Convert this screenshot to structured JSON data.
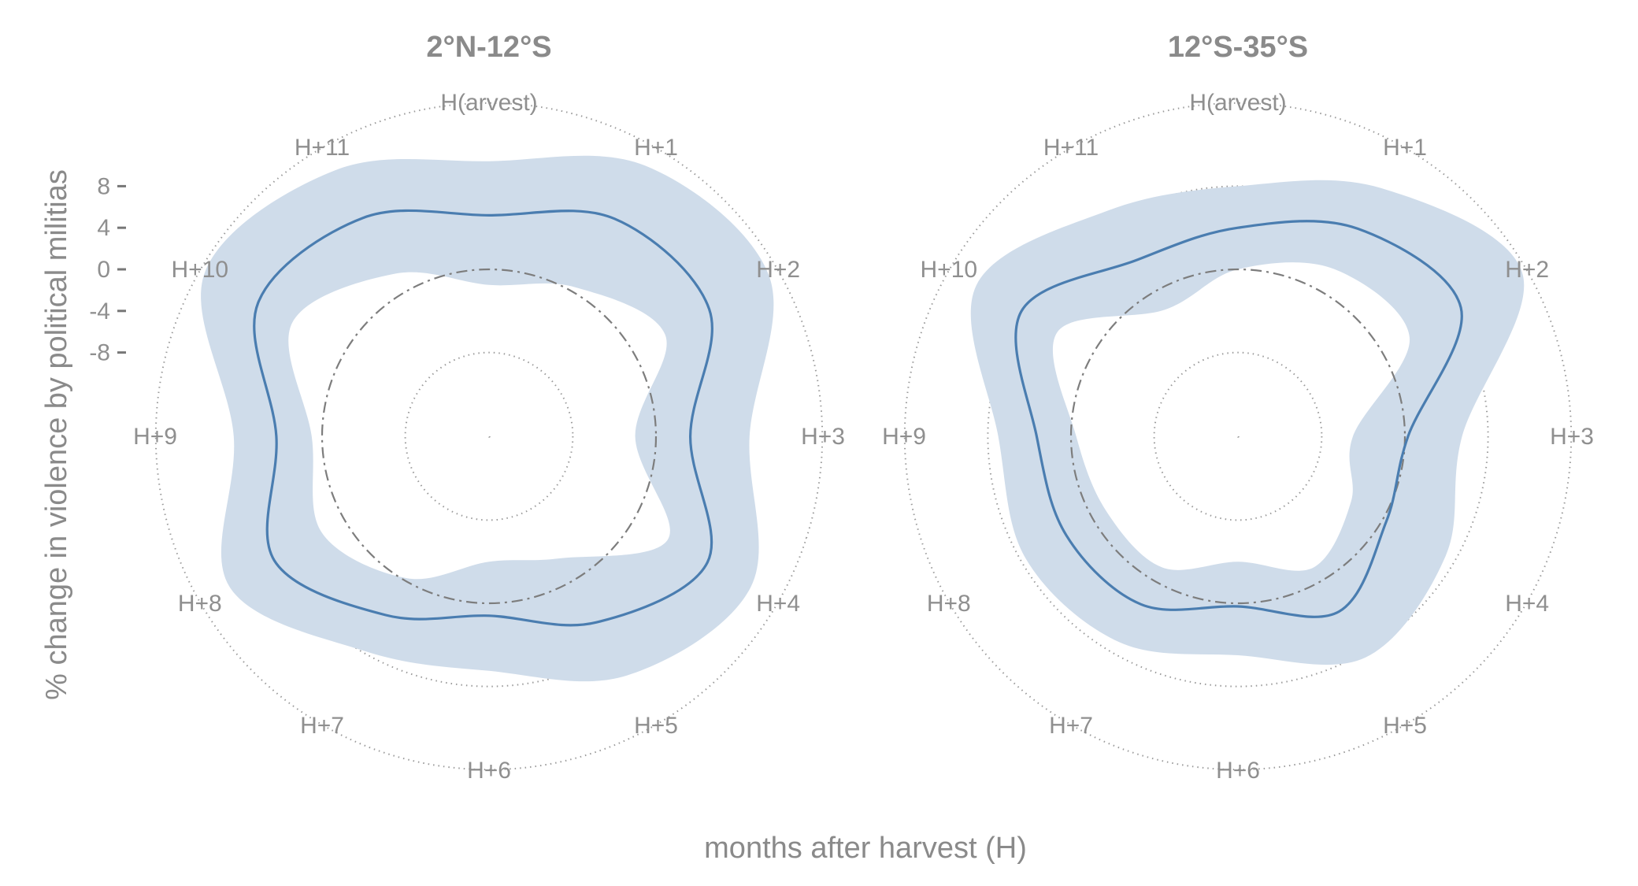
{
  "figure": {
    "xlabel": "months after harvest (H)",
    "ylabel": "% change in violence by political militias",
    "y_ticks": [
      "8",
      "4",
      "0",
      "-4",
      "-8"
    ],
    "month_labels": [
      "H(arvest)",
      "H+1",
      "H+2",
      "H+3",
      "H+4",
      "H+5",
      "H+6",
      "H+7",
      "H+8",
      "H+9",
      "H+10",
      "H+11"
    ]
  },
  "colors": {
    "mean_line": "#4a7db0",
    "ci_band": "#cfdcea",
    "text": "#8f8f8f"
  },
  "chart_data": [
    {
      "type": "line",
      "coordinate_system": "polar",
      "title": "2°N-12°S",
      "radial_axis": {
        "ticks": [
          8,
          4,
          0,
          -4,
          -8
        ],
        "grid_rings": [
          -32,
          -24,
          -16,
          -8,
          0,
          8,
          16
        ],
        "reference_ring": 0
      },
      "categories": [
        "H(arvest)",
        "H+1",
        "H+2",
        "H+3",
        "H+4",
        "H+5",
        "H+6",
        "H+7",
        "H+8",
        "H+9",
        "H+10",
        "H+11"
      ],
      "series": [
        {
          "values": [
            5.2,
            8.1,
            8.4,
            3.3,
            8.2,
            4.6,
            1.2,
            3.8,
            7.8,
            4.4,
            9.6,
            8.2
          ],
          "lower": [
            -1.5,
            0.5,
            3.5,
            -2.0,
            3.8,
            -2.5,
            -4.0,
            -0.3,
            2.5,
            1.0,
            5.8,
            2.0
          ],
          "upper": [
            10.4,
            14.0,
            15.0,
            9.0,
            13.0,
            10.5,
            6.5,
            7.8,
            12.8,
            8.5,
            15.5,
            13.5
          ]
        }
      ]
    },
    {
      "type": "line",
      "coordinate_system": "polar",
      "title": "12°S-35°S",
      "radial_axis": {
        "ticks": [
          8,
          4,
          0,
          -4,
          -8
        ],
        "grid_rings": [
          -32,
          -24,
          -16,
          -8,
          0,
          8,
          16
        ],
        "reference_ring": 0
      },
      "categories": [
        "H(arvest)",
        "H+1",
        "H+2",
        "H+3",
        "H+4",
        "H+5",
        "H+6",
        "H+7",
        "H+8",
        "H+9",
        "H+10",
        "H+11"
      ],
      "series": [
        {
          "values": [
            4.0,
            7.0,
            8.7,
            0.3,
            0.4,
            3.4,
            0.3,
            2.6,
            3.0,
            3.3,
            8.0,
            3.5
          ],
          "lower": [
            0.0,
            2.5,
            3.0,
            -5.0,
            -3.5,
            -1.5,
            -4.0,
            -1.5,
            -1.5,
            -0.5,
            4.0,
            -2.0
          ],
          "upper": [
            8.0,
            11.5,
            15.5,
            5.5,
            7.0,
            8.5,
            5.0,
            6.8,
            7.5,
            7.0,
            13.0,
            9.0
          ]
        }
      ]
    }
  ]
}
